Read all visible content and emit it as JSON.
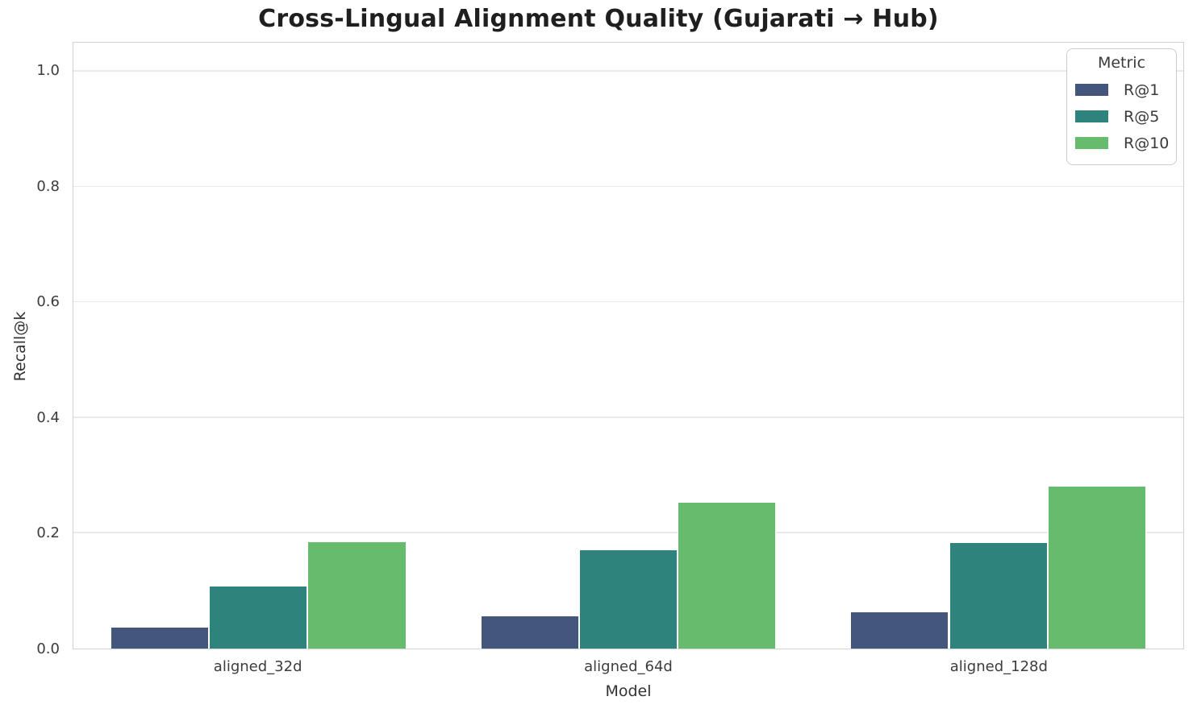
{
  "chart_data": {
    "type": "bar",
    "title": "Cross-Lingual Alignment Quality (Gujarati → Hub)",
    "xlabel": "Model",
    "ylabel": "Recall@k",
    "categories": [
      "aligned_32d",
      "aligned_64d",
      "aligned_128d"
    ],
    "series": [
      {
        "name": "R@1",
        "color": "#45567D",
        "values": [
          0.037,
          0.056,
          0.063
        ]
      },
      {
        "name": "R@5",
        "color": "#2E837C",
        "values": [
          0.108,
          0.17,
          0.183
        ]
      },
      {
        "name": "R@10",
        "color": "#67BB6C",
        "values": [
          0.185,
          0.253,
          0.281
        ]
      }
    ],
    "ylim": [
      0,
      1.05
    ],
    "yticks": [
      0.0,
      0.2,
      0.4,
      0.6,
      0.8,
      1.0
    ],
    "grid": true,
    "legend": {
      "title": "Metric",
      "position": "upper right"
    }
  }
}
